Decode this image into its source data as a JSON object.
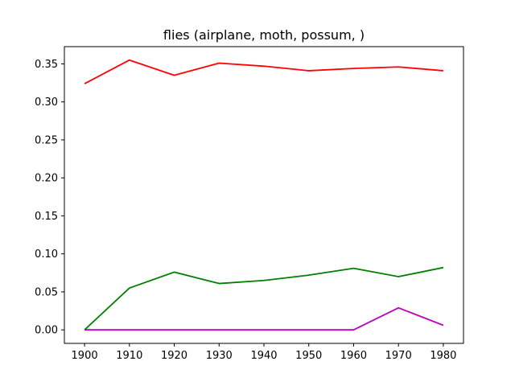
{
  "chart_data": {
    "type": "line",
    "title": "flies (airplane, moth, possum, )",
    "xlabel": "",
    "ylabel": "",
    "x": [
      1900,
      1910,
      1920,
      1930,
      1940,
      1950,
      1960,
      1970,
      1980
    ],
    "xlim": [
      1895.5,
      1984.5
    ],
    "ylim": [
      -0.0178,
      0.3727
    ],
    "xticks": [
      1900,
      1910,
      1920,
      1930,
      1940,
      1950,
      1960,
      1970,
      1980
    ],
    "xtick_labels": [
      "1900",
      "1910",
      "1920",
      "1930",
      "1940",
      "1950",
      "1960",
      "1970",
      "1980"
    ],
    "yticks": [
      0.0,
      0.05,
      0.1,
      0.15,
      0.2,
      0.25,
      0.3,
      0.35
    ],
    "ytick_labels": [
      "0.00",
      "0.05",
      "0.10",
      "0.15",
      "0.20",
      "0.25",
      "0.30",
      "0.35"
    ],
    "grid": false,
    "legend": "none",
    "series": [
      {
        "color": "#ff0000",
        "values": [
          0.324,
          0.355,
          0.335,
          0.351,
          0.347,
          0.341,
          0.344,
          0.346,
          0.341
        ]
      },
      {
        "color": "#008000",
        "values": [
          0.0,
          0.055,
          0.076,
          0.061,
          0.065,
          0.072,
          0.081,
          0.07,
          0.082
        ]
      },
      {
        "color": "#bf00bf",
        "values": [
          0.0,
          0.0,
          0.0,
          0.0,
          0.0,
          0.0,
          0.0,
          0.029,
          0.006
        ]
      }
    ]
  }
}
